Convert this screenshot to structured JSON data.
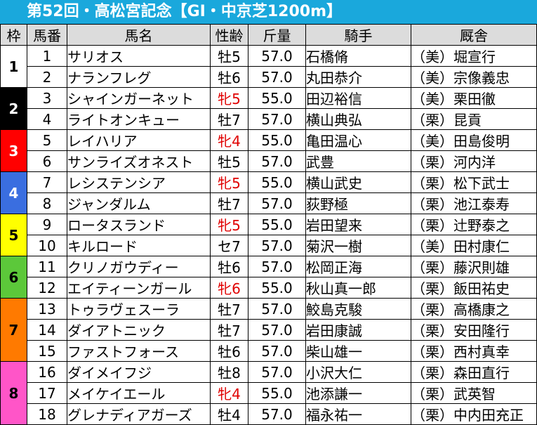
{
  "title": "第52回・高松宮記念【GⅠ・中京芝1200m】",
  "headers": [
    "枠",
    "馬番",
    "馬名",
    "性齢",
    "斤量",
    "騎手",
    "厩舎"
  ],
  "frame_colors": {
    "1": "#ffffff",
    "2": "#000000",
    "3": "#ff0000",
    "4": "#3a6ee0",
    "5": "#ffff00",
    "6": "#5cc83a",
    "7": "#ff7a00",
    "8": "#ff55c8"
  },
  "mare_color": "#e00000",
  "entries": [
    {
      "frame": "1",
      "num": "1",
      "horse": "サリオス",
      "sex_age": "牡5",
      "mare": false,
      "weight": "57.0",
      "jockey": "石橋脩",
      "trainer": "（美）堀宣行"
    },
    {
      "frame": "1",
      "num": "2",
      "horse": "ナランフレグ",
      "sex_age": "牡6",
      "mare": false,
      "weight": "57.0",
      "jockey": "丸田恭介",
      "trainer": "（美）宗像義忠"
    },
    {
      "frame": "2",
      "num": "3",
      "horse": "シャインガーネット",
      "sex_age": "牝5",
      "mare": true,
      "weight": "55.0",
      "jockey": "田辺裕信",
      "trainer": "（美）栗田徹"
    },
    {
      "frame": "2",
      "num": "4",
      "horse": "ライトオンキュー",
      "sex_age": "牡7",
      "mare": false,
      "weight": "57.0",
      "jockey": "横山典弘",
      "trainer": "（栗）昆貢"
    },
    {
      "frame": "3",
      "num": "5",
      "horse": "レイハリア",
      "sex_age": "牝4",
      "mare": true,
      "weight": "55.0",
      "jockey": "亀田温心",
      "trainer": "（美）田島俊明"
    },
    {
      "frame": "3",
      "num": "6",
      "horse": "サンライズオネスト",
      "sex_age": "牡5",
      "mare": false,
      "weight": "57.0",
      "jockey": "武豊",
      "trainer": "（栗）河内洋"
    },
    {
      "frame": "4",
      "num": "7",
      "horse": "レシステンシア",
      "sex_age": "牝5",
      "mare": true,
      "weight": "55.0",
      "jockey": "横山武史",
      "trainer": "（栗）松下武士"
    },
    {
      "frame": "4",
      "num": "8",
      "horse": "ジャンダルム",
      "sex_age": "牡7",
      "mare": false,
      "weight": "57.0",
      "jockey": "荻野極",
      "trainer": "（栗）池江泰寿"
    },
    {
      "frame": "5",
      "num": "9",
      "horse": "ロータスランド",
      "sex_age": "牝5",
      "mare": true,
      "weight": "55.0",
      "jockey": "岩田望来",
      "trainer": "（栗）辻野泰之"
    },
    {
      "frame": "5",
      "num": "10",
      "horse": "キルロード",
      "sex_age": "セ7",
      "mare": false,
      "weight": "57.0",
      "jockey": "菊沢一樹",
      "trainer": "（美）田村康仁"
    },
    {
      "frame": "6",
      "num": "11",
      "horse": "クリノガウディー",
      "sex_age": "牡6",
      "mare": false,
      "weight": "57.0",
      "jockey": "松岡正海",
      "trainer": "（栗）藤沢則雄"
    },
    {
      "frame": "6",
      "num": "12",
      "horse": "エイティーンガール",
      "sex_age": "牝6",
      "mare": true,
      "weight": "55.0",
      "jockey": "秋山真一郎",
      "trainer": "（栗）飯田祐史"
    },
    {
      "frame": "7",
      "num": "13",
      "horse": "トゥラヴェスーラ",
      "sex_age": "牡7",
      "mare": false,
      "weight": "57.0",
      "jockey": "鮫島克駿",
      "trainer": "（栗）高橋康之"
    },
    {
      "frame": "7",
      "num": "14",
      "horse": "ダイアトニック",
      "sex_age": "牡7",
      "mare": false,
      "weight": "57.0",
      "jockey": "岩田康誠",
      "trainer": "（栗）安田隆行"
    },
    {
      "frame": "7",
      "num": "15",
      "horse": "ファストフォース",
      "sex_age": "牡6",
      "mare": false,
      "weight": "57.0",
      "jockey": "柴山雄一",
      "trainer": "（栗）西村真幸"
    },
    {
      "frame": "8",
      "num": "16",
      "horse": "ダイメイフジ",
      "sex_age": "牡8",
      "mare": false,
      "weight": "57.0",
      "jockey": "小沢大仁",
      "trainer": "（栗）森田直行"
    },
    {
      "frame": "8",
      "num": "17",
      "horse": "メイケイエール",
      "sex_age": "牝4",
      "mare": true,
      "weight": "55.0",
      "jockey": "池添謙一",
      "trainer": "（栗）武英智"
    },
    {
      "frame": "8",
      "num": "18",
      "horse": "グレナディアガーズ",
      "sex_age": "牡4",
      "mare": false,
      "weight": "57.0",
      "jockey": "福永祐一",
      "trainer": "（栗）中内田充正"
    }
  ]
}
